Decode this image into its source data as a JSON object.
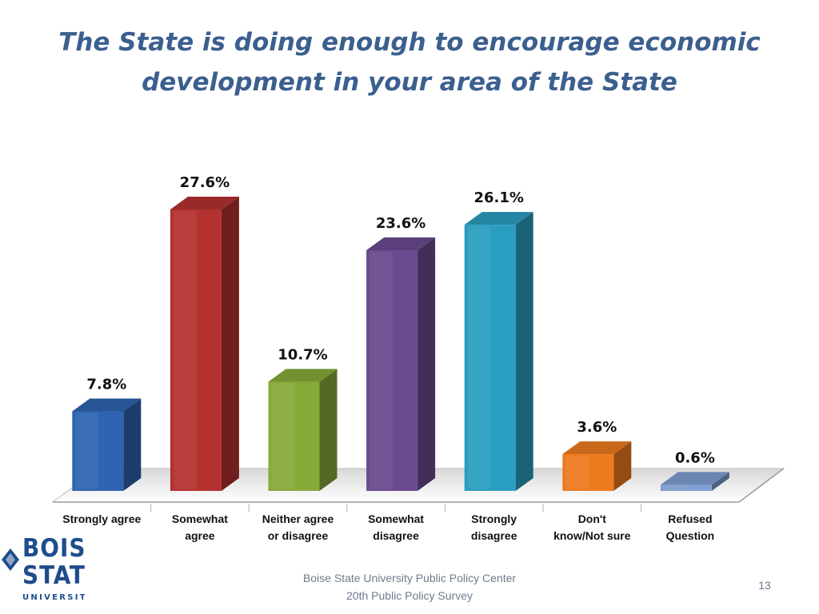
{
  "slide": {
    "title": "The State is doing enough to encourage economic development in your area of the State",
    "footer_line1": "Boise State University  Public Policy Center",
    "footer_line2": "20th Public Policy Survey",
    "page_number": "13",
    "logo_text": [
      "BOISE",
      "STATE",
      "UNIVERSITY"
    ]
  },
  "chart_data": {
    "type": "bar",
    "categories": [
      [
        "Strongly agree"
      ],
      [
        "Somewhat",
        "agree"
      ],
      [
        "Neither agree",
        "or disagree"
      ],
      [
        "Somewhat",
        "disagree"
      ],
      [
        "Strongly",
        "disagree"
      ],
      [
        "Don't",
        "know/Not sure"
      ],
      [
        "Refused",
        "Question"
      ]
    ],
    "values": [
      7.8,
      27.6,
      10.7,
      23.6,
      26.1,
      3.6,
      0.6
    ],
    "value_labels": [
      "7.8%",
      "27.6%",
      "10.7%",
      "23.6%",
      "26.1%",
      "3.6%",
      "0.6%"
    ],
    "colors": [
      "#2e64b0",
      "#b3322f",
      "#86aa3a",
      "#6a4a8f",
      "#2a9ec0",
      "#ee7a1e",
      "#7f9fd0"
    ],
    "ylim": [
      0,
      27.6
    ],
    "grid": false,
    "legend": "none",
    "three_d": true
  }
}
